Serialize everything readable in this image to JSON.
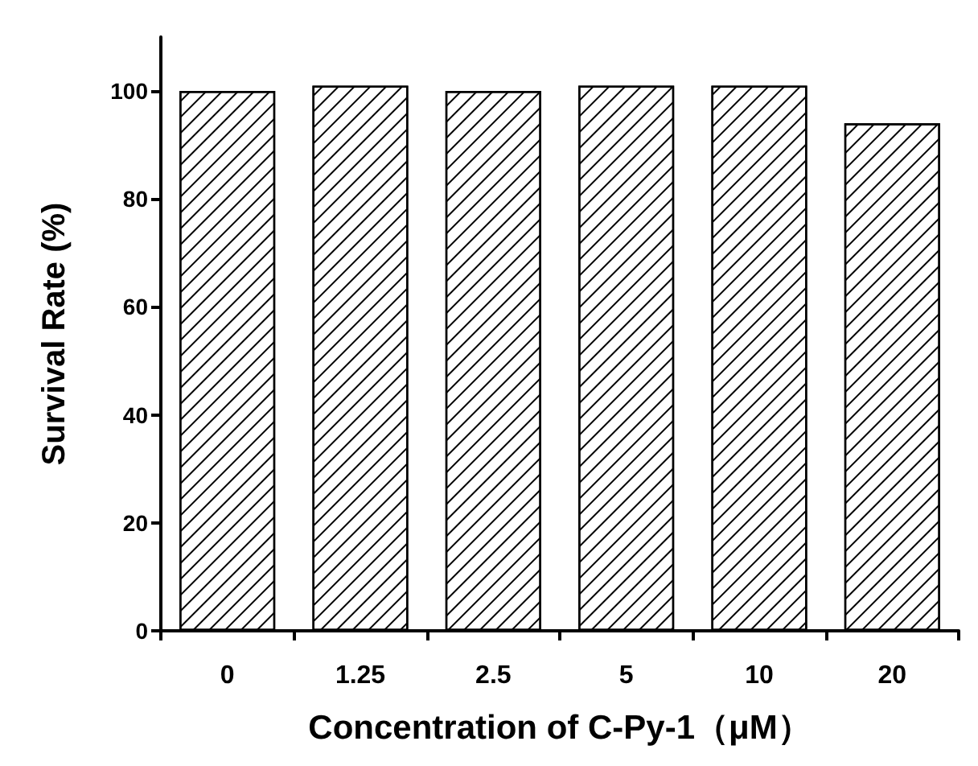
{
  "chart_data": {
    "type": "bar",
    "xlabel": "Concentration of C-Py-1（μM）",
    "ylabel": "Survival Rate (%)",
    "categories": [
      "0",
      "1.25",
      "2.5",
      "5",
      "10",
      "20"
    ],
    "values": [
      100,
      101,
      100,
      101,
      101,
      94
    ],
    "color": "#ffffff",
    "ylim": [
      0,
      110
    ],
    "yticks": [
      0,
      20,
      40,
      60,
      80,
      100
    ],
    "grid": false
  }
}
